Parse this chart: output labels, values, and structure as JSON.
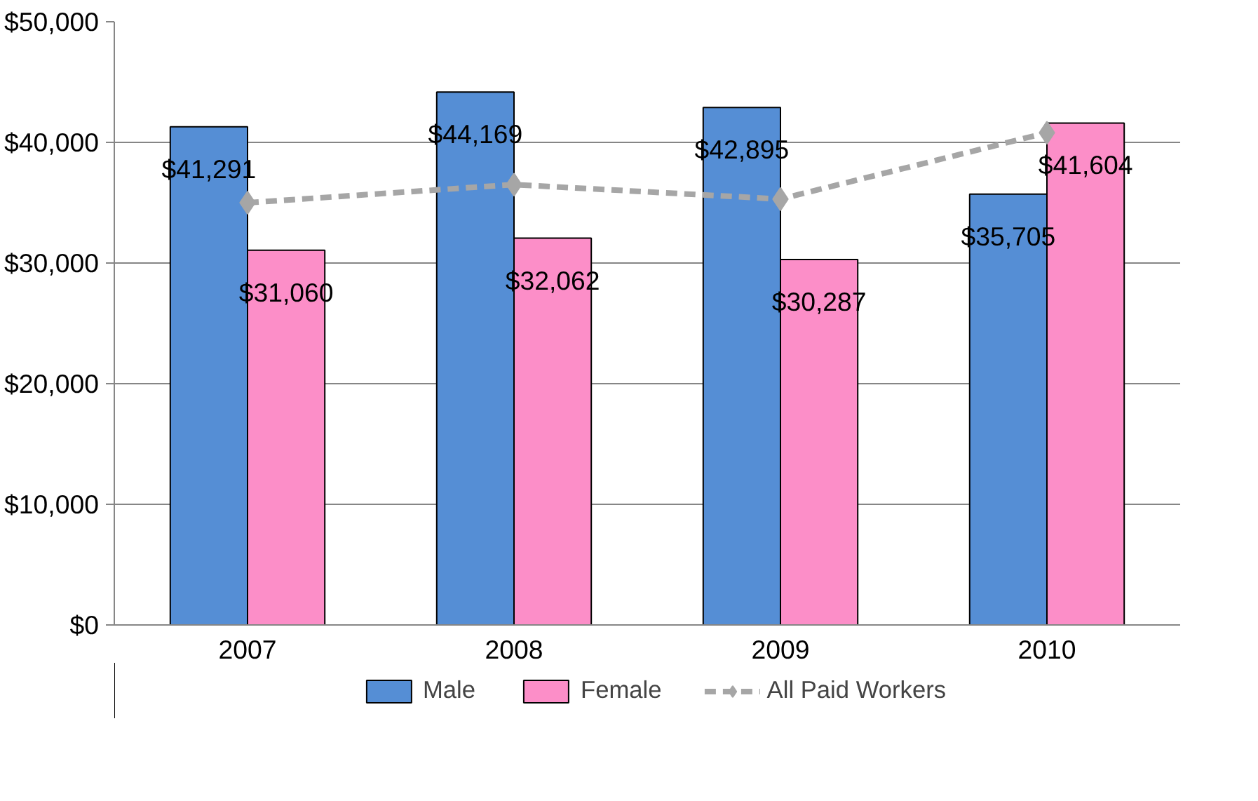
{
  "chart_data": {
    "type": "bar",
    "categories": [
      "2007",
      "2008",
      "2009",
      "2010"
    ],
    "series": [
      {
        "name": "Male",
        "color": "#558ed5",
        "values": [
          41291,
          44169,
          42895,
          35705
        ],
        "value_labels": [
          "$41,291",
          "$44,169",
          "$42,895",
          "$35,705"
        ]
      },
      {
        "name": "Female",
        "color": "#fc8ec8",
        "values": [
          31060,
          32062,
          30287,
          41604
        ],
        "value_labels": [
          "$31,060",
          "$32,062",
          "$30,287",
          "$41,604"
        ]
      },
      {
        "name": "All Paid Workers",
        "type": "line",
        "color": "#a6a6a6",
        "values": [
          35000,
          36500,
          35300,
          40800
        ],
        "marker": "diamond",
        "line_style": "dashed"
      }
    ],
    "ylim": [
      0,
      50000
    ],
    "yticks": [
      {
        "value": 0,
        "label": "$0"
      },
      {
        "value": 10000,
        "label": "$10,000"
      },
      {
        "value": 20000,
        "label": "$20,000"
      },
      {
        "value": 30000,
        "label": "$30,000"
      },
      {
        "value": 40000,
        "label": "$40,000"
      },
      {
        "value": 50000,
        "label": "$50,000"
      }
    ],
    "grid": "y",
    "legend": "bottom"
  }
}
